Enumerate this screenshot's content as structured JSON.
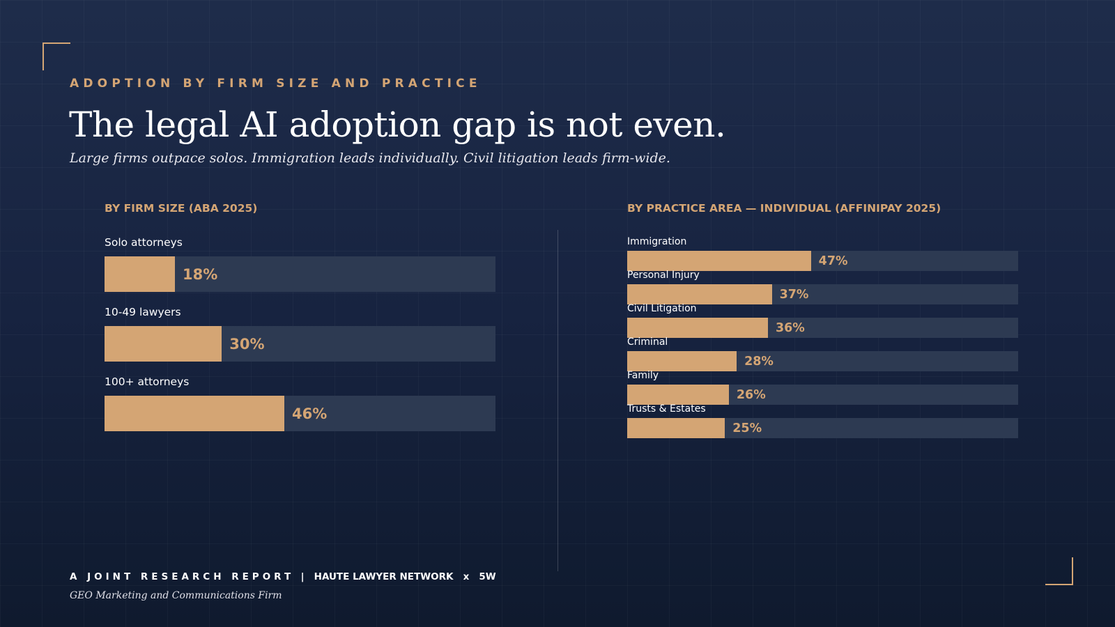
{
  "eyebrow": "ADOPTION BY FIRM SIZE AND PRACTICE",
  "title": "The legal AI adoption gap is not even.",
  "subtitle": "Large firms outpace solos. Immigration leads individually. Civil litigation leads firm-wide.",
  "colors": {
    "accent": "#d4a574",
    "track": "#2d3a52",
    "background": "#1a2642"
  },
  "chart_data": [
    {
      "type": "bar",
      "orientation": "horizontal",
      "title": "BY FIRM SIZE (ABA 2025)",
      "xlim": [
        0,
        100
      ],
      "categories": [
        "Solo attorneys",
        "10-49 lawyers",
        "100+ attorneys"
      ],
      "values": [
        18,
        30,
        46
      ],
      "labels": [
        "18%",
        "30%",
        "46%"
      ]
    },
    {
      "type": "bar",
      "orientation": "horizontal",
      "title": "BY PRACTICE AREA — INDIVIDUAL (AFFINIPAY 2025)",
      "xlim": [
        0,
        100
      ],
      "categories": [
        "Immigration",
        "Personal Injury",
        "Civil Litigation",
        "Criminal",
        "Family",
        "Trusts & Estates"
      ],
      "values": [
        47,
        37,
        36,
        28,
        26,
        25
      ],
      "labels": [
        "47%",
        "37%",
        "36%",
        "28%",
        "26%",
        "25%"
      ]
    }
  ],
  "footer": {
    "report": "A JOINT RESEARCH REPORT",
    "sep": "|",
    "partners": "HAUTE LAWYER NETWORK",
    "x": "x",
    "partner2": "5W",
    "tagline": "GEO Marketing and Communications Firm"
  }
}
